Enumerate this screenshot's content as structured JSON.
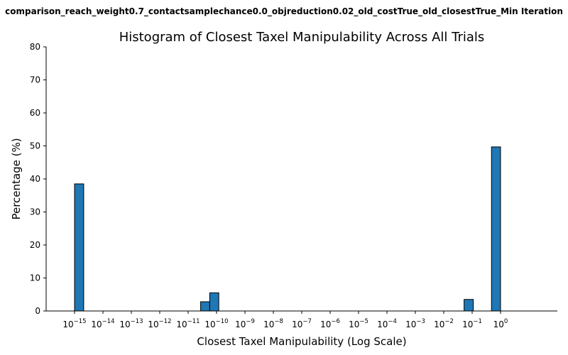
{
  "figure": {
    "suptitle": "comparison_reach_weight0.7_contactsamplechance0.0_objreduction0.02_old_costTrue_old_closestTrue_Min Iteration"
  },
  "chart_data": {
    "type": "bar",
    "title": "Histogram of Closest Taxel Manipulability Across All Trials",
    "xlabel": "Closest Taxel Manipulability (Log Scale)",
    "ylabel": "Percentage (%)",
    "x_scale": "log",
    "xlim": [
      1e-16,
      100
    ],
    "ylim": [
      0,
      80
    ],
    "yticks": [
      0,
      10,
      20,
      30,
      40,
      50,
      60,
      70,
      80
    ],
    "xticks": [
      {
        "value": 1e-15,
        "base": "10",
        "exp": "−15"
      },
      {
        "value": 1e-14,
        "base": "10",
        "exp": "−14"
      },
      {
        "value": 1e-13,
        "base": "10",
        "exp": "−13"
      },
      {
        "value": 1e-12,
        "base": "10",
        "exp": "−12"
      },
      {
        "value": 1e-11,
        "base": "10",
        "exp": "−11"
      },
      {
        "value": 1e-10,
        "base": "10",
        "exp": "−10"
      },
      {
        "value": 1e-09,
        "base": "10",
        "exp": "−9"
      },
      {
        "value": 1e-08,
        "base": "10",
        "exp": "−8"
      },
      {
        "value": 1e-07,
        "base": "10",
        "exp": "−7"
      },
      {
        "value": 1e-06,
        "base": "10",
        "exp": "−6"
      },
      {
        "value": 1e-05,
        "base": "10",
        "exp": "−5"
      },
      {
        "value": 0.0001,
        "base": "10",
        "exp": "−4"
      },
      {
        "value": 0.001,
        "base": "10",
        "exp": "−3"
      },
      {
        "value": 0.01,
        "base": "10",
        "exp": "−2"
      },
      {
        "value": 0.1,
        "base": "10",
        "exp": "−1"
      },
      {
        "value": 1,
        "base": "10",
        "exp": "0"
      }
    ],
    "bins": [
      {
        "x_start": 1e-15,
        "x_end": 2.1e-15,
        "value": 38.5
      },
      {
        "x_start": 2.75e-11,
        "x_end": 5.75e-11,
        "value": 2.8
      },
      {
        "x_start": 5.75e-11,
        "x_end": 1.2e-10,
        "value": 5.5
      },
      {
        "x_start": 0.052,
        "x_end": 0.11,
        "value": 3.5
      },
      {
        "x_start": 0.48,
        "x_end": 1.0,
        "value": 49.7
      }
    ],
    "bar_color": "#1f77b4",
    "edge_color": "#000000",
    "grid": false
  }
}
